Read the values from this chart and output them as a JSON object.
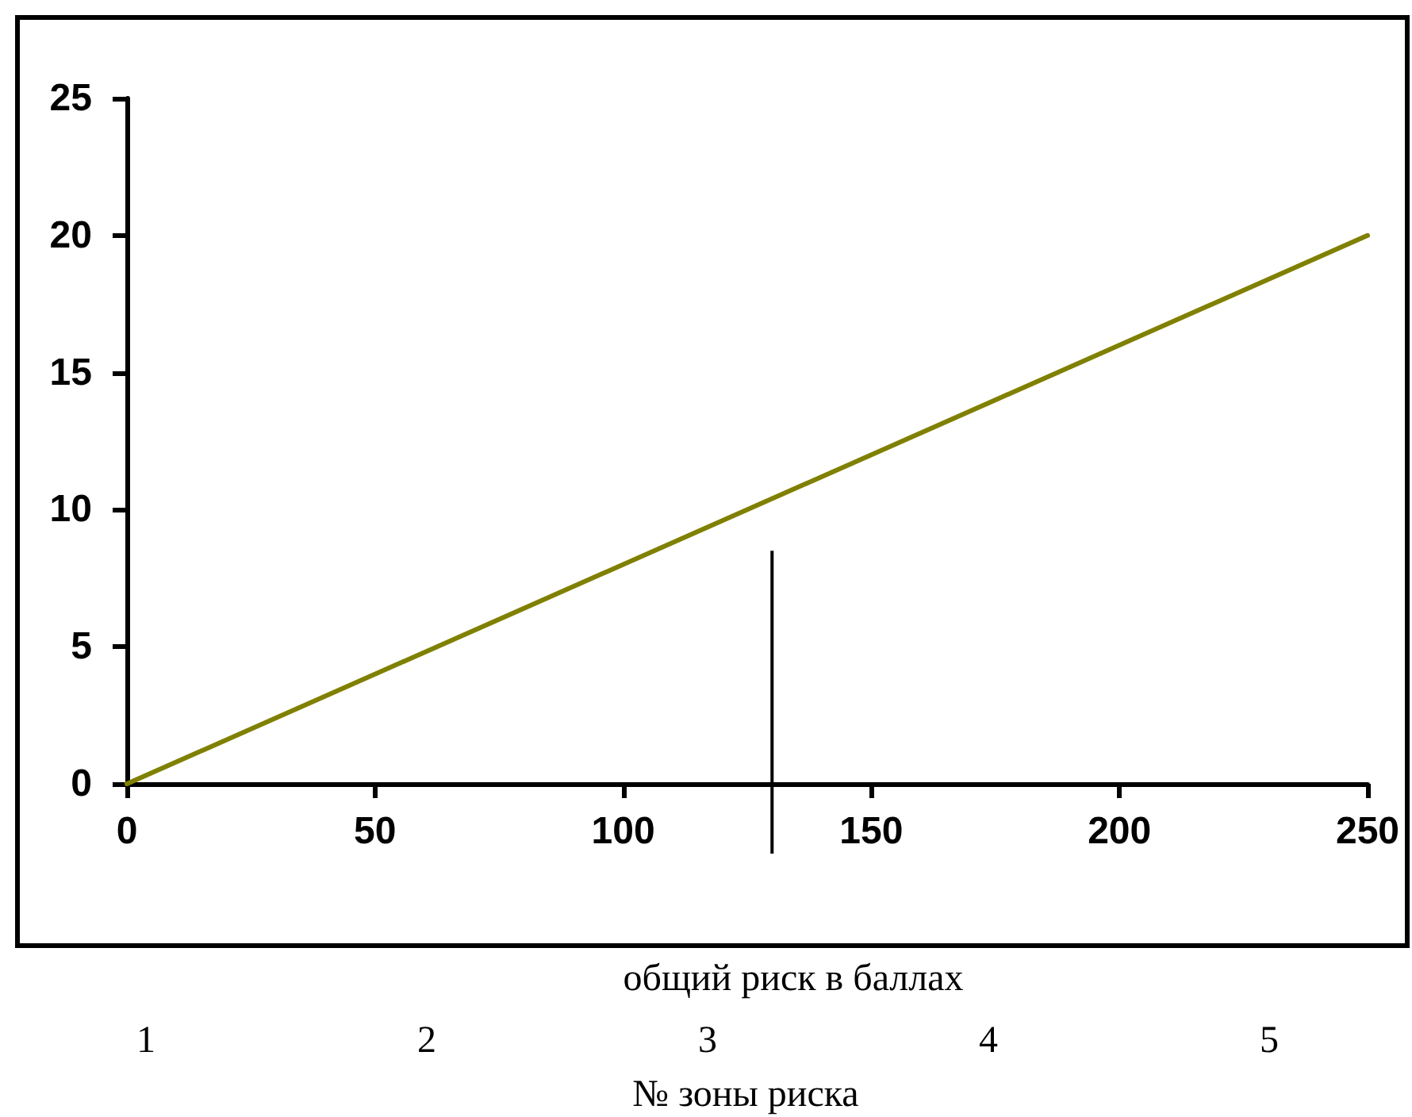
{
  "chart_data": {
    "type": "line",
    "xlabel": "общий риск в баллах",
    "x": [
      0,
      250
    ],
    "series": [
      {
        "color": "#808000",
        "values": [
          0,
          20
        ]
      }
    ],
    "xlim": [
      0,
      250
    ],
    "xticks": [
      0,
      50,
      100,
      150,
      200,
      250
    ],
    "ylim": [
      0,
      25
    ],
    "yticks": [
      0,
      5,
      10,
      15,
      20,
      25
    ],
    "ref_lines": [
      {
        "axis": "x",
        "value": 130,
        "color": "#000000"
      }
    ],
    "annotations": [
      "1",
      "2",
      "3",
      "4",
      "5",
      "№ зоны риска"
    ],
    "grid": false,
    "marker": "none",
    "line_style": "solid"
  }
}
